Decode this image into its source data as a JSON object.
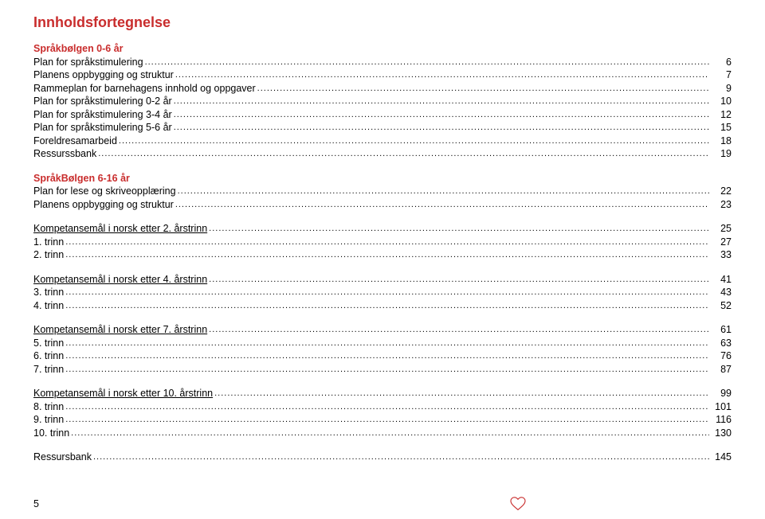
{
  "title": "Innholdsfortegnelse",
  "pageNumber": "5",
  "colors": {
    "accent": "#c92d2d",
    "text": "#000000",
    "background": "#ffffff"
  },
  "sections": [
    {
      "head": "Språkbølgen 0-6 år",
      "rows": [
        {
          "label": "Plan for språkstimulering",
          "page": "6"
        },
        {
          "label": "Planens oppbygging og struktur",
          "page": "7"
        },
        {
          "label": "Rammeplan for barnehagens innhold og oppgaver",
          "page": "9"
        },
        {
          "label": "Plan for språkstimulering  0-2 år",
          "page": "10"
        },
        {
          "label": "Plan for språkstimulering  3-4 år",
          "page": "12"
        },
        {
          "label": "Plan for språkstimulering  5-6 år",
          "page": "15"
        },
        {
          "label": "Foreldresamarbeid",
          "page": "18"
        },
        {
          "label": "Ressurssbank",
          "page": "19"
        }
      ]
    },
    {
      "head": "SpråkBølgen 6-16 år",
      "rows": [
        {
          "label": "Plan for lese og skriveopplæring",
          "page": "22"
        },
        {
          "label": "Planens oppbygging og struktur",
          "page": "23"
        }
      ]
    },
    {
      "head": null,
      "rows": [
        {
          "label": "Kompetansemål i norsk etter 2. årstrinn",
          "page": "25",
          "underline": true
        },
        {
          "label": "1. trinn",
          "page": "27"
        },
        {
          "label": "2. trinn",
          "page": "33"
        }
      ]
    },
    {
      "head": null,
      "rows": [
        {
          "label": "Kompetansemål i norsk etter 4. årstrinn",
          "page": "41",
          "underline": true
        },
        {
          "label": "3. trinn",
          "page": "43"
        },
        {
          "label": "4. trinn",
          "page": "52"
        }
      ]
    },
    {
      "head": null,
      "rows": [
        {
          "label": "Kompetansemål i norsk etter 7. årstrinn",
          "page": "61",
          "underline": true
        },
        {
          "label": "5. trinn",
          "page": "63"
        },
        {
          "label": "6. trinn",
          "page": "76"
        },
        {
          "label": "7. trinn",
          "page": "87"
        }
      ]
    },
    {
      "head": null,
      "rows": [
        {
          "label": "Kompetansemål i norsk etter 10. årstrinn",
          "page": "99",
          "underline": true
        },
        {
          "label": "8. trinn",
          "page": "101"
        },
        {
          "label": "9. trinn",
          "page": "116"
        },
        {
          "label": "10. trinn",
          "page": "130"
        }
      ]
    },
    {
      "head": null,
      "rows": [
        {
          "label": "Ressursbank",
          "page": "145"
        }
      ]
    }
  ]
}
